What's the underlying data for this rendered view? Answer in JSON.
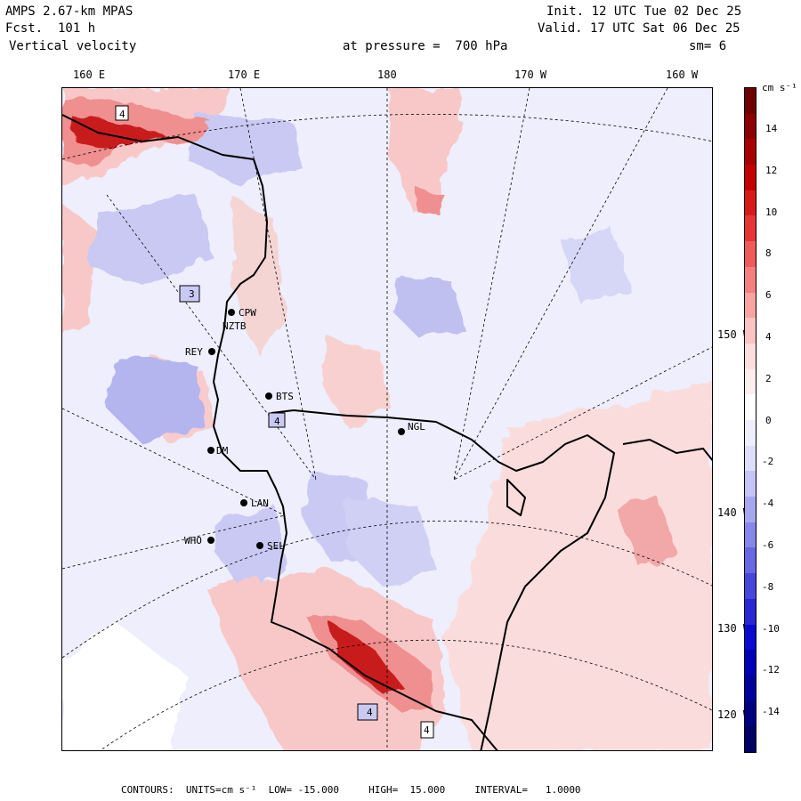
{
  "header": {
    "model": "AMPS 2.67-km MPAS",
    "forecast": "Fcst.  101 h",
    "field": "Vertical velocity",
    "init": "Init. 12 UTC Tue 02 Dec 25",
    "valid": "Valid. 17 UTC Sat 06 Dec 25",
    "pressure": "at pressure =  700 hPa",
    "smoothing": "sm= 6"
  },
  "longitude_labels": [
    "160 E",
    "170 E",
    "180",
    "170 W",
    "160 W"
  ],
  "latitude_labels": [
    "150 W",
    "140 W",
    "130 W",
    "120 W"
  ],
  "stations": [
    "CPW",
    "NZTB",
    "REY",
    "BTS",
    "NGL",
    "DM",
    "LAN",
    "WHO",
    "SEL"
  ],
  "contour_labels": [
    "4",
    "3",
    "4",
    "4",
    "4"
  ],
  "colorbar": {
    "unit": "cm s⁻¹",
    "ticks": [
      "14",
      "12",
      "10",
      "8",
      "6",
      "4",
      "2",
      "0",
      "-2",
      "-4",
      "-6",
      "-8",
      "-10",
      "-12",
      "-14"
    ],
    "colors": [
      "#6e0000",
      "#8c0000",
      "#a80000",
      "#c40000",
      "#d81a1a",
      "#e63636",
      "#ef5a5a",
      "#f57f7f",
      "#f9a3a3",
      "#fbc3c3",
      "#fddede",
      "#fdeeee",
      "#ffffff",
      "#eeeefd",
      "#dedefb",
      "#c4c4f7",
      "#a6a6f1",
      "#8787ea",
      "#6868e3",
      "#4747db",
      "#2727d3",
      "#0a0ad0",
      "#0000b4",
      "#00009a",
      "#00007e",
      "#000064"
    ]
  },
  "footer": {
    "contours": "CONTOURS:  UNITS=cm s⁻¹  LOW= -15.000     HIGH=  15.000     INTERVAL=   1.0000"
  },
  "colors": {
    "background_field": "#eeeefc",
    "positive_light": "#f8c8c8",
    "positive_mid": "#ef8f8f",
    "positive_strong": "#c81e1e",
    "negative_light": "#c9c9f3",
    "negative_mid": "#9a9ae8",
    "coast": "#000000"
  }
}
